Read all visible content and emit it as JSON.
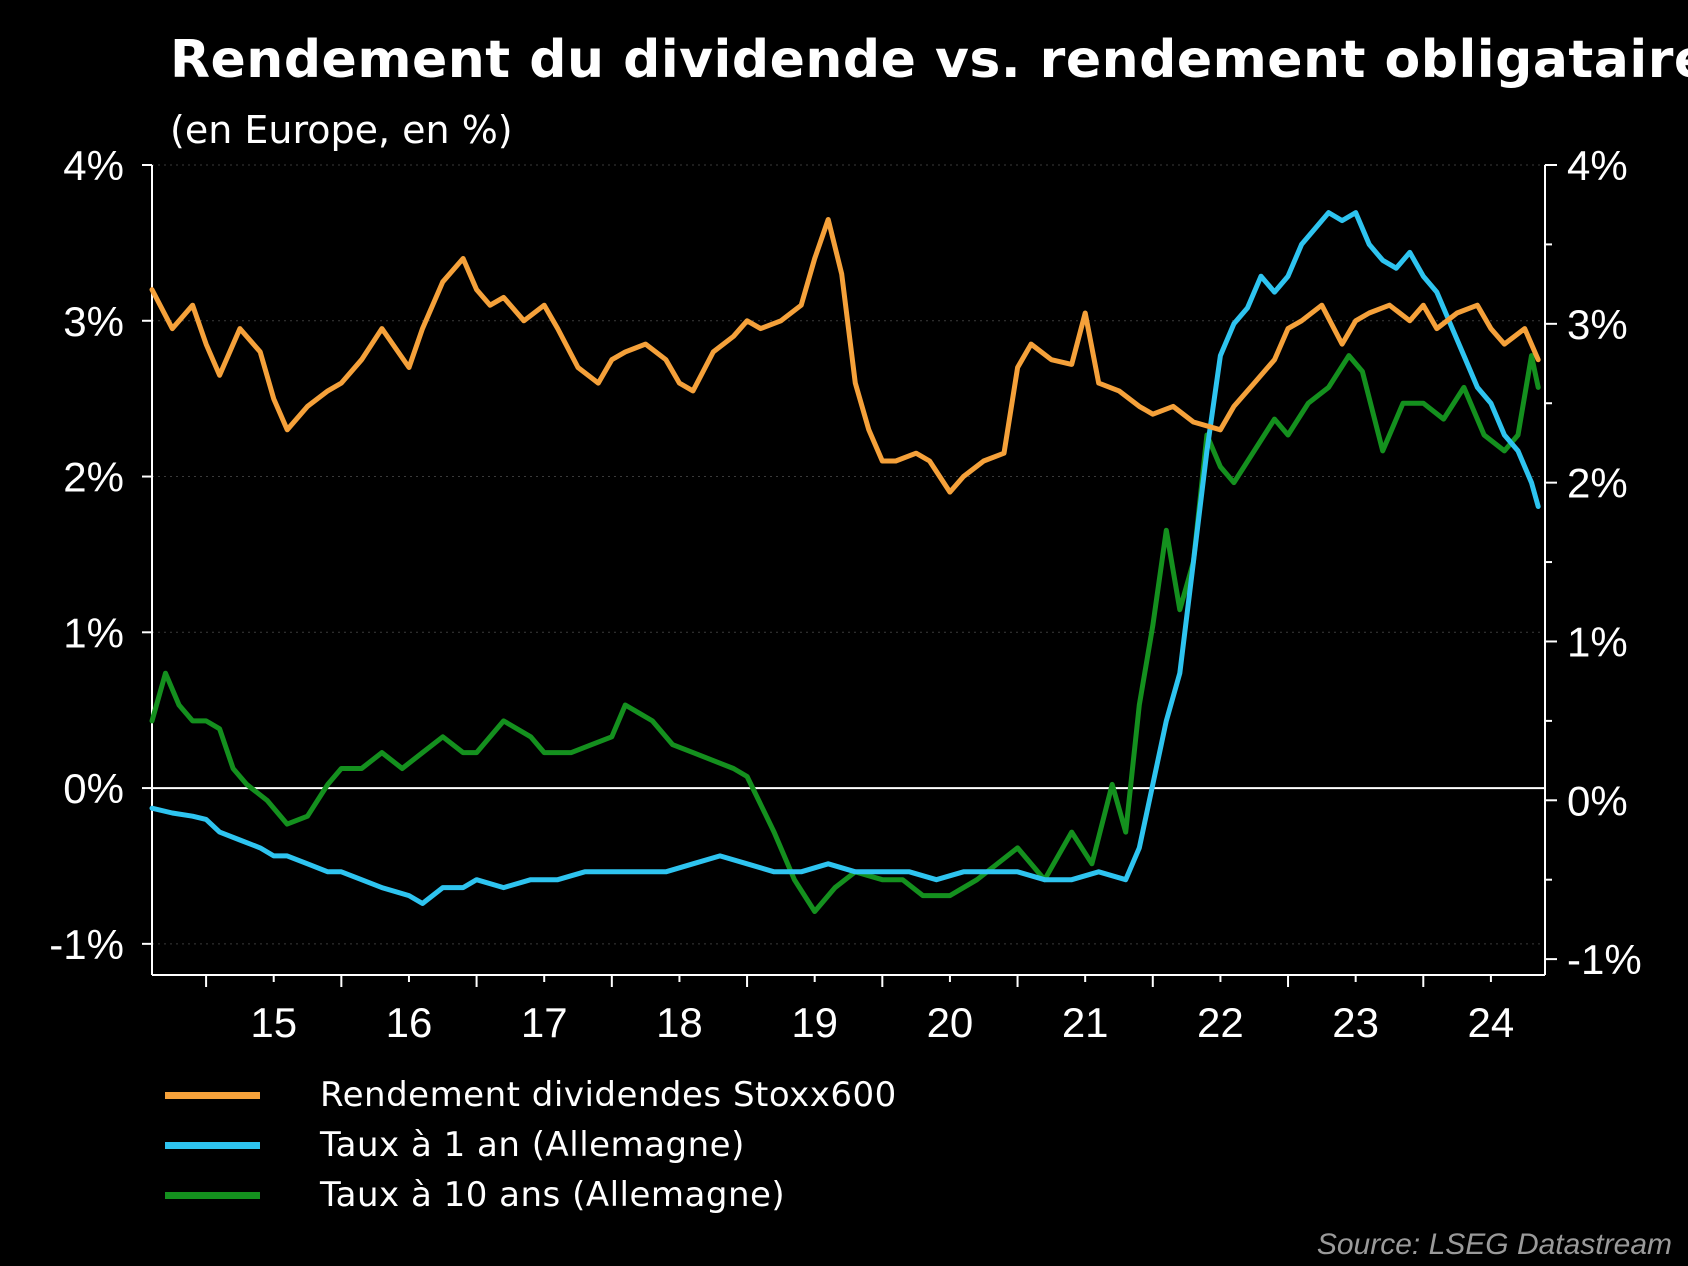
{
  "chart_data": {
    "type": "line",
    "title": "Rendement du dividende vs. rendement obligataire",
    "subtitle": "(en Europe, en %)",
    "x_tick_labels": [
      "15",
      "16",
      "17",
      "18",
      "19",
      "20",
      "21",
      "22",
      "23",
      "24"
    ],
    "y_left": {
      "ticks": [
        "-1%",
        "0%",
        "1%",
        "2%",
        "3%",
        "4%"
      ],
      "tick_values": [
        -1,
        0,
        1,
        2,
        3,
        4
      ],
      "range": [
        -1.2,
        4
      ]
    },
    "y_right": {
      "ticks": [
        "-1%",
        "0%",
        "1%",
        "2%",
        "3%",
        "4%"
      ],
      "tick_values": [
        -1,
        0,
        1,
        2,
        3,
        4
      ],
      "range": [
        -1.1,
        4
      ]
    },
    "xlim": [
      2014.6,
      2024.9
    ],
    "zero_line": true,
    "legend_position": "bottom-left",
    "series": [
      {
        "name": "Rendement dividendes Stoxx600",
        "color": "#F5A13A",
        "axis": "left",
        "x": [
          2014.6,
          2014.75,
          2014.9,
          2015.0,
          2015.1,
          2015.25,
          2015.4,
          2015.5,
          2015.6,
          2015.75,
          2015.9,
          2016.0,
          2016.15,
          2016.3,
          2016.5,
          2016.6,
          2016.75,
          2016.9,
          2017.0,
          2017.1,
          2017.2,
          2017.35,
          2017.5,
          2017.6,
          2017.75,
          2017.9,
          2018.0,
          2018.1,
          2018.25,
          2018.4,
          2018.5,
          2018.6,
          2018.75,
          2018.9,
          2019.0,
          2019.1,
          2019.25,
          2019.4,
          2019.5,
          2019.6,
          2019.7,
          2019.8,
          2019.9,
          2020.0,
          2020.1,
          2020.25,
          2020.35,
          2020.5,
          2020.6,
          2020.75,
          2020.9,
          2021.0,
          2021.1,
          2021.25,
          2021.4,
          2021.5,
          2021.6,
          2021.75,
          2021.9,
          2022.0,
          2022.15,
          2022.3,
          2022.5,
          2022.6,
          2022.75,
          2022.9,
          2023.0,
          2023.1,
          2023.25,
          2023.4,
          2023.5,
          2023.6,
          2023.75,
          2023.9,
          2024.0,
          2024.1,
          2024.25,
          2024.4,
          2024.5,
          2024.6,
          2024.75,
          2024.85
        ],
        "y": [
          3.2,
          2.95,
          3.1,
          2.85,
          2.65,
          2.95,
          2.8,
          2.5,
          2.3,
          2.45,
          2.55,
          2.6,
          2.75,
          2.95,
          2.7,
          2.95,
          3.25,
          3.4,
          3.2,
          3.1,
          3.15,
          3.0,
          3.1,
          2.95,
          2.7,
          2.6,
          2.75,
          2.8,
          2.85,
          2.75,
          2.6,
          2.55,
          2.8,
          2.9,
          3.0,
          2.95,
          3.0,
          3.1,
          3.4,
          3.65,
          3.3,
          2.6,
          2.3,
          2.1,
          2.1,
          2.15,
          2.1,
          1.9,
          2.0,
          2.1,
          2.15,
          2.7,
          2.85,
          2.75,
          2.72,
          3.05,
          2.6,
          2.55,
          2.45,
          2.4,
          2.45,
          2.35,
          2.3,
          2.45,
          2.6,
          2.75,
          2.95,
          3.0,
          3.1,
          2.85,
          3.0,
          3.05,
          3.1,
          3.0,
          3.1,
          2.95,
          3.05,
          3.1,
          2.95,
          2.85,
          2.95,
          2.75
        ]
      },
      {
        "name": "Taux à 1 an (Allemagne)",
        "color": "#2EC4F0",
        "axis": "right",
        "x": [
          2014.6,
          2014.75,
          2014.9,
          2015.0,
          2015.1,
          2015.25,
          2015.4,
          2015.5,
          2015.6,
          2015.75,
          2015.9,
          2016.0,
          2016.15,
          2016.3,
          2016.5,
          2016.6,
          2016.75,
          2016.9,
          2017.0,
          2017.2,
          2017.4,
          2017.6,
          2017.8,
          2018.0,
          2018.2,
          2018.4,
          2018.6,
          2018.8,
          2019.0,
          2019.2,
          2019.4,
          2019.6,
          2019.8,
          2020.0,
          2020.2,
          2020.4,
          2020.6,
          2020.8,
          2021.0,
          2021.2,
          2021.4,
          2021.6,
          2021.8,
          2021.9,
          2022.0,
          2022.1,
          2022.2,
          2022.3,
          2022.4,
          2022.5,
          2022.6,
          2022.7,
          2022.8,
          2022.9,
          2023.0,
          2023.1,
          2023.2,
          2023.3,
          2023.4,
          2023.5,
          2023.6,
          2023.7,
          2023.8,
          2023.9,
          2024.0,
          2024.1,
          2024.2,
          2024.3,
          2024.4,
          2024.5,
          2024.6,
          2024.7,
          2024.8,
          2024.85
        ],
        "y": [
          -0.05,
          -0.08,
          -0.1,
          -0.12,
          -0.2,
          -0.25,
          -0.3,
          -0.35,
          -0.35,
          -0.4,
          -0.45,
          -0.45,
          -0.5,
          -0.55,
          -0.6,
          -0.65,
          -0.55,
          -0.55,
          -0.5,
          -0.55,
          -0.5,
          -0.5,
          -0.45,
          -0.45,
          -0.45,
          -0.45,
          -0.4,
          -0.35,
          -0.4,
          -0.45,
          -0.45,
          -0.4,
          -0.45,
          -0.45,
          -0.45,
          -0.5,
          -0.45,
          -0.45,
          -0.45,
          -0.5,
          -0.5,
          -0.45,
          -0.5,
          -0.3,
          0.1,
          0.5,
          0.8,
          1.5,
          2.2,
          2.8,
          3.0,
          3.1,
          3.3,
          3.2,
          3.3,
          3.5,
          3.6,
          3.7,
          3.65,
          3.7,
          3.5,
          3.4,
          3.35,
          3.45,
          3.3,
          3.2,
          3.0,
          2.8,
          2.6,
          2.5,
          2.3,
          2.2,
          2.0,
          1.85
        ]
      },
      {
        "name": "Taux à 10 ans (Allemagne)",
        "color": "#14901E",
        "axis": "right",
        "x": [
          2014.6,
          2014.7,
          2014.8,
          2014.9,
          2015.0,
          2015.1,
          2015.2,
          2015.3,
          2015.45,
          2015.6,
          2015.75,
          2015.9,
          2016.0,
          2016.15,
          2016.3,
          2016.45,
          2016.6,
          2016.75,
          2016.9,
          2017.0,
          2017.2,
          2017.4,
          2017.5,
          2017.7,
          2017.85,
          2018.0,
          2018.1,
          2018.3,
          2018.45,
          2018.6,
          2018.75,
          2018.9,
          2019.0,
          2019.2,
          2019.35,
          2019.5,
          2019.65,
          2019.8,
          2020.0,
          2020.15,
          2020.3,
          2020.5,
          2020.7,
          2020.85,
          2021.0,
          2021.2,
          2021.4,
          2021.55,
          2021.7,
          2021.8,
          2021.9,
          2022.0,
          2022.1,
          2022.2,
          2022.3,
          2022.4,
          2022.5,
          2022.6,
          2022.75,
          2022.9,
          2023.0,
          2023.15,
          2023.3,
          2023.45,
          2023.55,
          2023.7,
          2023.85,
          2024.0,
          2024.15,
          2024.3,
          2024.45,
          2024.6,
          2024.7,
          2024.8,
          2024.85
        ],
        "y": [
          0.5,
          0.8,
          0.6,
          0.5,
          0.5,
          0.45,
          0.2,
          0.1,
          0.0,
          -0.15,
          -0.1,
          0.1,
          0.2,
          0.2,
          0.3,
          0.2,
          0.3,
          0.4,
          0.3,
          0.3,
          0.5,
          0.4,
          0.3,
          0.3,
          0.35,
          0.4,
          0.6,
          0.5,
          0.35,
          0.3,
          0.25,
          0.2,
          0.15,
          -0.2,
          -0.5,
          -0.7,
          -0.55,
          -0.45,
          -0.5,
          -0.5,
          -0.6,
          -0.6,
          -0.5,
          -0.4,
          -0.3,
          -0.5,
          -0.2,
          -0.4,
          0.1,
          -0.2,
          0.6,
          1.1,
          1.7,
          1.2,
          1.5,
          2.3,
          2.1,
          2.0,
          2.2,
          2.4,
          2.3,
          2.5,
          2.6,
          2.8,
          2.7,
          2.2,
          2.5,
          2.5,
          2.4,
          2.6,
          2.3,
          2.2,
          2.3,
          2.8,
          2.6
        ]
      }
    ]
  },
  "source": "Source: LSEG Datastream"
}
